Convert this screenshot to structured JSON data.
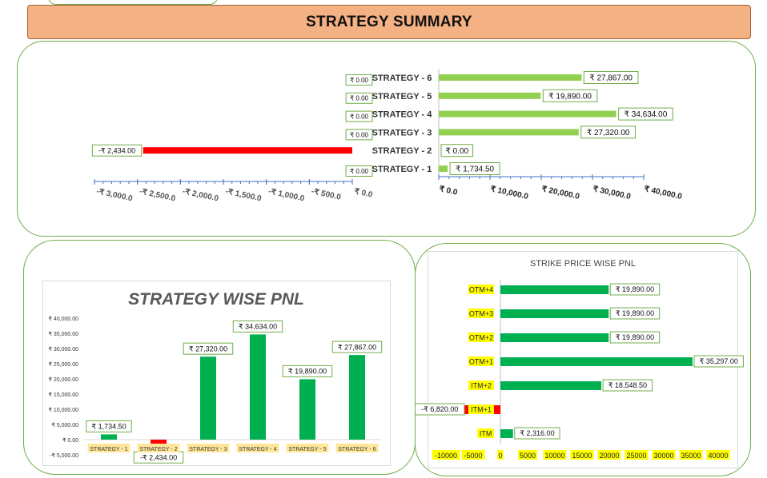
{
  "header": {
    "title": "STRATEGY SUMMARY"
  },
  "chart_data": [
    {
      "type": "bar",
      "orientation": "horizontal",
      "layout": "butterfly",
      "categories": [
        "STRATEGY - 1",
        "STRATEGY - 2",
        "STRATEGY - 3",
        "STRATEGY - 4",
        "STRATEGY - 5",
        "STRATEGY - 6"
      ],
      "series": [
        {
          "values": [
            0,
            -2434,
            0,
            0,
            0,
            0
          ],
          "labels": [
            "₹ 0.00",
            "-₹ 2,434.00",
            "₹ 0.00",
            "₹ 0.00",
            "₹ 0.00",
            "₹ 0.00"
          ]
        },
        {
          "values": [
            1734.5,
            0,
            27320,
            34634,
            19890,
            27867
          ],
          "labels": [
            "₹ 1,734.50",
            "₹ 0.00",
            "₹ 27,320.00",
            "₹ 34,634.00",
            "₹ 19,890.00",
            "₹ 27,867.00"
          ]
        }
      ],
      "left_axis": {
        "ticks": [
          "-₹ 3,000.0",
          "-₹ 2,500.0",
          "-₹ 2,000.0",
          "-₹ 1,500.0",
          "-₹ 1,000.0",
          "-₹ 500.0",
          "₹ 0.0"
        ],
        "lim": [
          -3000,
          0
        ]
      },
      "right_axis": {
        "ticks": [
          "₹ 0.0",
          "₹ 10,000.0",
          "₹ 20,000.0",
          "₹ 30,000.0",
          "₹ 40,000.0"
        ],
        "lim": [
          0,
          40000
        ]
      },
      "colors": {
        "positive": "#92d050",
        "negative": "#ff0000",
        "label_border": "#70ad47",
        "axis": "#4472c4"
      }
    },
    {
      "type": "bar",
      "title": "STRATEGY WISE PNL",
      "categories": [
        "STRATEGY - 1",
        "STRATEGY - 2",
        "STRATEGY - 3",
        "STRATEGY - 4",
        "STRATEGY - 5",
        "STRATEGY - 6"
      ],
      "values": [
        1734.5,
        -2434,
        27320,
        34634,
        19890,
        27867
      ],
      "labels": [
        "₹ 1,734.50",
        "-₹ 2,434.00",
        "₹ 27,320.00",
        "₹ 34,634.00",
        "₹ 19,890.00",
        "₹ 27,867.00"
      ],
      "ylim": [
        -5000,
        40000
      ],
      "yticks": [
        -5000,
        0,
        5000,
        10000,
        15000,
        20000,
        25000,
        30000,
        35000,
        40000
      ],
      "ytick_labels": [
        "-₹ 5,000.00",
        "₹ 0.00",
        "₹ 5,000.00",
        "₹ 10,000.00",
        "₹ 15,000.00",
        "₹ 20,000.00",
        "₹ 25,000.00",
        "₹ 30,000.00",
        "₹ 35,000.00",
        "₹ 40,000.00"
      ],
      "colors": {
        "positive": "#00b050",
        "negative": "#ff0000",
        "category_highlight": "#ffe699"
      }
    },
    {
      "type": "bar",
      "orientation": "horizontal",
      "title": "STRIKE PRICE WISE PNL",
      "categories": [
        "ITM",
        "ITM+1",
        "ITM+2",
        "OTM+1",
        "OTM+2",
        "OTM+3",
        "OTM+4"
      ],
      "values": [
        2316,
        -6820,
        18548.5,
        35297,
        19890,
        19890,
        19890
      ],
      "labels": [
        "₹ 2,316.00",
        "-₹ 6,820.00",
        "₹ 18,548.50",
        "₹ 35,297.00",
        "₹ 19,890.00",
        "₹ 19,890.00",
        "₹ 19,890.00"
      ],
      "xlim": [
        -10000,
        40000
      ],
      "xticks": [
        -10000,
        -5000,
        0,
        5000,
        10000,
        15000,
        20000,
        25000,
        30000,
        35000,
        40000
      ],
      "xtick_labels": [
        "-10000",
        "-5000",
        "0",
        "5000",
        "10000",
        "15000",
        "20000",
        "25000",
        "30000",
        "35000",
        "40000"
      ],
      "colors": {
        "positive": "#00b050",
        "negative": "#ff0000",
        "category_highlight": "#ffff00"
      }
    }
  ]
}
